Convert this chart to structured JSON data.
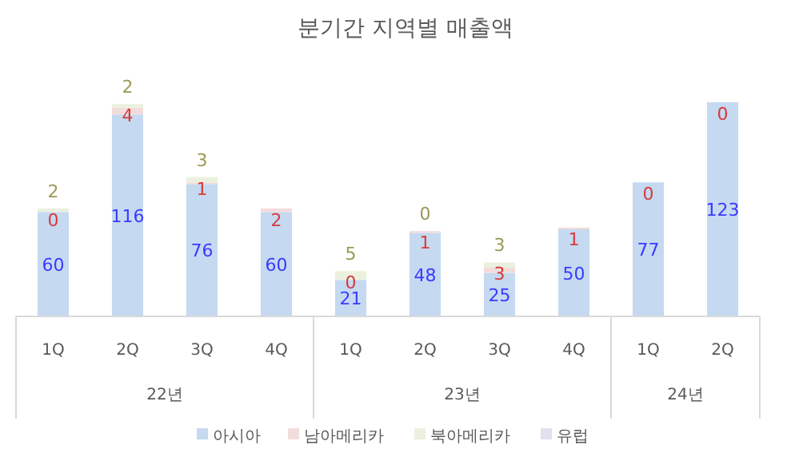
{
  "chart_data": {
    "type": "bar",
    "stacked": true,
    "title": "분기간 지역별 매출액",
    "categories": [
      "1Q",
      "2Q",
      "3Q",
      "4Q",
      "1Q",
      "2Q",
      "3Q",
      "4Q",
      "1Q",
      "2Q"
    ],
    "annotations": [
      "22년",
      "23년",
      "24년"
    ],
    "series": [
      {
        "name": "아시아",
        "color": "#c5d9f1",
        "values": [
          60,
          116,
          76,
          60,
          21,
          48,
          25,
          50,
          77,
          123
        ]
      },
      {
        "name": "남아메리카",
        "color": "#f2dcdb",
        "values": [
          0,
          4,
          1,
          2,
          0,
          1,
          3,
          1,
          0,
          0
        ]
      },
      {
        "name": "북아메리카",
        "color": "#ebf1de",
        "values": [
          2,
          2,
          3,
          0,
          5,
          0,
          3,
          0,
          0,
          0
        ],
        "value_labels": [
          "2",
          "2",
          "3",
          null,
          "5",
          "0",
          "3",
          null,
          null,
          null
        ]
      },
      {
        "name": "유럽",
        "color": "#e4dfec",
        "values": [
          0,
          0,
          0,
          0,
          0,
          0,
          0,
          0,
          0,
          0
        ],
        "value_labels": [
          null,
          null,
          null,
          null,
          null,
          null,
          null,
          null,
          null,
          null
        ]
      }
    ],
    "data_labels": true,
    "legend": "bottom"
  }
}
